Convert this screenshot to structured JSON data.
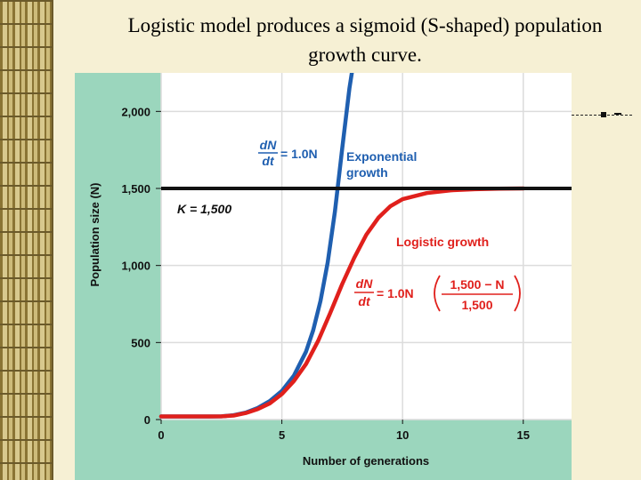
{
  "slide": {
    "title_line1": "Logistic model produces a sigmoid (S-shaped) population",
    "title_line2": "growth curve."
  },
  "chart_data": {
    "type": "line",
    "xlabel": "Number of generations",
    "ylabel": "Population size (N)",
    "xlim": [
      0,
      17
    ],
    "ylim": [
      0,
      2250
    ],
    "xticks": [
      0,
      5,
      10,
      15
    ],
    "xtick_labels": [
      "0",
      "5",
      "10",
      "15"
    ],
    "yticks": [
      0,
      500,
      1000,
      1500,
      2000
    ],
    "ytick_labels": [
      "0",
      "500",
      "1,000",
      "1,500",
      "2,000"
    ],
    "carrying_capacity": 1500,
    "colors": {
      "exponential": "#1f5fb0",
      "logistic": "#e0201c",
      "capacity": "#111111",
      "plot_bg": "#ffffff",
      "figure_bg": "#9bd6bd"
    },
    "series": [
      {
        "name": "Exponential growth",
        "x": [
          0,
          1,
          2,
          2.5,
          3,
          3.5,
          4,
          4.5,
          5,
          5.5,
          6,
          6.3,
          6.6,
          6.9,
          7.2,
          7.5,
          7.8,
          7.9
        ],
        "y": [
          20,
          20,
          20,
          21,
          28,
          45,
          75,
          120,
          185,
          285,
          440,
          580,
          770,
          1020,
          1350,
          1760,
          2150,
          2250
        ]
      },
      {
        "name": "Logistic growth",
        "x": [
          0,
          1,
          2,
          2.5,
          3,
          3.5,
          4,
          4.5,
          5,
          5.5,
          6,
          6.5,
          7,
          7.5,
          8,
          8.5,
          9,
          9.5,
          10,
          11,
          12,
          13,
          14,
          15
        ],
        "y": [
          20,
          20,
          20,
          21,
          26,
          42,
          68,
          105,
          165,
          250,
          360,
          510,
          690,
          880,
          1050,
          1200,
          1310,
          1385,
          1430,
          1470,
          1488,
          1495,
          1498,
          1500
        ]
      }
    ],
    "annotations": {
      "k_label": "K = 1,500",
      "exp_eq_num": "dN",
      "exp_eq_den": "dt",
      "exp_eq_rhs": "= 1.0N",
      "exp_label_1": "Exponential",
      "exp_label_2": "growth",
      "log_label": "Logistic growth",
      "log_eq_num": "dN",
      "log_eq_den": "dt",
      "log_eq_mid": "= 1.0N",
      "log_frac_num": "1,500 − N",
      "log_frac_den": "1,500"
    }
  }
}
